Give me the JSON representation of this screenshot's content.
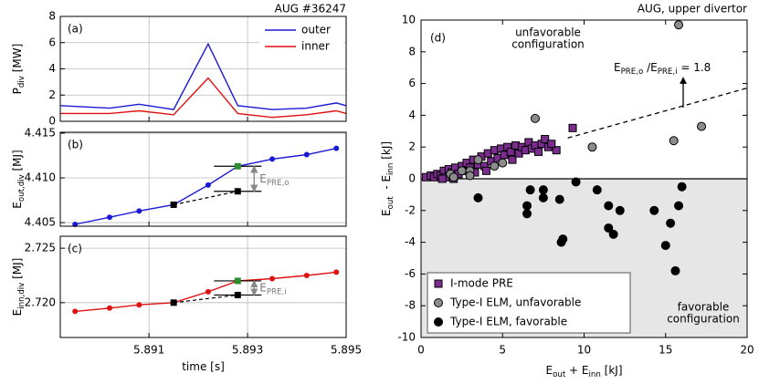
{
  "chart_data": [
    {
      "type": "line",
      "title": "AUG #36247",
      "panel": "(a)",
      "x": [
        5.8892,
        5.8902,
        5.8908,
        5.8915,
        5.8922,
        5.8928,
        5.8935,
        5.8942,
        5.8948,
        5.895
      ],
      "series": [
        {
          "name": "outer",
          "color": "#1a1ad6",
          "values": [
            1.2,
            1.0,
            1.3,
            0.9,
            5.9,
            1.2,
            0.9,
            1.0,
            1.4,
            1.2
          ]
        },
        {
          "name": "inner",
          "color": "#e01010",
          "values": [
            0.6,
            0.6,
            0.8,
            0.5,
            3.3,
            0.6,
            0.3,
            0.5,
            0.8,
            0.6
          ]
        }
      ],
      "xlim": [
        5.8892,
        5.895
      ],
      "ylim": [
        0,
        8
      ],
      "xticks": [
        5.891,
        5.893,
        5.895
      ],
      "yticks": [
        0,
        2,
        4,
        6,
        8
      ],
      "ylabel": [
        {
          "text": "P"
        },
        {
          "sub": "div"
        },
        {
          "text": " [MW]"
        }
      ],
      "grid": true,
      "legend": "upper right"
    },
    {
      "type": "line",
      "panel": "(b)",
      "x": [
        5.8895,
        5.8902,
        5.8908,
        5.8915,
        5.8922,
        5.8928,
        5.8935,
        5.8942,
        5.8948
      ],
      "series": [
        {
          "color": "#1a1ad6",
          "markers": true,
          "values": [
            4.4048,
            4.4056,
            4.4063,
            4.407,
            4.4092,
            4.4113,
            4.4121,
            4.4126,
            4.4133
          ]
        }
      ],
      "squares": [
        {
          "x": 5.8915,
          "y": 4.407,
          "color": "#000000"
        },
        {
          "x": 5.8928,
          "y": 4.4085,
          "color": "#000000"
        },
        {
          "x": 5.8928,
          "y": 4.4113,
          "color": "#2e8b2e"
        }
      ],
      "annotation": [
        {
          "text": "E"
        },
        {
          "sub": "PRE,o"
        }
      ],
      "xlim": [
        5.8892,
        5.895
      ],
      "ylim": [
        4.4046,
        4.4151
      ],
      "xticks": [
        5.891,
        5.893,
        5.895
      ],
      "yticks": [
        4.405,
        {
          "value": 4.41,
          "label": "4.410"
        },
        4.415
      ],
      "ylabel": [
        {
          "text": "E"
        },
        {
          "sub": "out,div"
        },
        {
          "text": " [MJ]"
        }
      ],
      "grid": true
    },
    {
      "type": "line",
      "panel": "(c)",
      "x": [
        5.8895,
        5.8902,
        5.8908,
        5.8915,
        5.8922,
        5.8928,
        5.8935,
        5.8942,
        5.8948
      ],
      "series": [
        {
          "color": "#e01010",
          "markers": true,
          "values": [
            2.7192,
            2.7195,
            2.7198,
            2.72,
            2.721,
            2.722,
            2.7222,
            2.7225,
            2.7228
          ]
        }
      ],
      "squares": [
        {
          "x": 5.8915,
          "y": 2.72,
          "color": "#000000"
        },
        {
          "x": 5.8928,
          "y": 2.7207,
          "color": "#000000"
        },
        {
          "x": 5.8928,
          "y": 2.722,
          "color": "#2e8b2e"
        }
      ],
      "annotation": [
        {
          "text": "E"
        },
        {
          "sub": "PRE,i"
        }
      ],
      "xlim": [
        5.8892,
        5.895
      ],
      "ylim": [
        2.7168,
        2.7261
      ],
      "xticks": [
        5.891,
        5.893,
        5.895
      ],
      "yticks": [
        {
          "value": 2.72,
          "label": "2.720"
        },
        2.725
      ],
      "ylabel": [
        {
          "text": "E"
        },
        {
          "sub": "inn,div"
        },
        {
          "text": " [MJ]"
        }
      ],
      "xlabel": [
        {
          "text": "time [s]"
        }
      ],
      "grid": true
    },
    {
      "type": "scatter",
      "title": "AUG, upper divertor",
      "panel": "(d)",
      "series": [
        {
          "name": "I-mode PRE",
          "marker": "square",
          "color": "#7b2d8e",
          "x": [
            0.3,
            0.6,
            0.8,
            1,
            1.2,
            1.4,
            1.5,
            1.7,
            1.9,
            2.1,
            2.3,
            2.5,
            2.6,
            2.8,
            3,
            3.2,
            3.3,
            3.5,
            3.7,
            3.9,
            4.1,
            4.3,
            4.5,
            4.7,
            4.9,
            5.1,
            5.3,
            5.5,
            5.6,
            5.8,
            6,
            6.2,
            6.4,
            6.6,
            6.8,
            7,
            7.2,
            7.4,
            7.6,
            7.8,
            8.3,
            9.3,
            8,
            4,
            2,
            1.3
          ],
          "values": [
            0.1,
            0.2,
            0.1,
            0.3,
            0.2,
            0.5,
            0.1,
            0.6,
            0.4,
            0.7,
            0.3,
            0.8,
            0.5,
            1,
            0.7,
            1.2,
            0.4,
            0.9,
            1.4,
            0.8,
            1.6,
            1.1,
            1.8,
            1.3,
            1.9,
            1.5,
            2,
            1.7,
            1.2,
            2.1,
            1.6,
            2,
            1.8,
            2.3,
            1.9,
            2.1,
            1.7,
            2.2,
            2.5,
            2,
            1.8,
            3.2,
            2.2,
            0.5,
            0,
            0
          ]
        },
        {
          "name": "Type-I ELM, unfavorable",
          "marker": "circle",
          "color": "#8c8c8c",
          "x": [
            1.8,
            2,
            2.5,
            3,
            3,
            3.5,
            4.5,
            5,
            7,
            10.5,
            15.5,
            15.8,
            17.2
          ],
          "values": [
            0.3,
            0.1,
            0.5,
            0.5,
            0.2,
            1.2,
            0.8,
            1,
            3.8,
            2,
            2.4,
            9.7,
            3.3
          ]
        },
        {
          "name": "Type-I ELM, favorable",
          "marker": "circle",
          "color": "#000000",
          "x": [
            3.5,
            6.5,
            6.5,
            6.7,
            7.5,
            7.5,
            8.5,
            8.6,
            8.7,
            9.5,
            10.8,
            11.5,
            11.5,
            11.8,
            12.2,
            14.3,
            15,
            15.3,
            15.6,
            15.8,
            16
          ],
          "values": [
            -1.2,
            -1.7,
            -2.2,
            -0.7,
            -0.7,
            -1.2,
            -1.3,
            -4,
            -3.8,
            -0.2,
            -0.7,
            -1.7,
            -3.1,
            -3.5,
            -2,
            -2,
            -4.2,
            -2.8,
            -5.8,
            -1.7,
            -0.5
          ]
        }
      ],
      "xlim": [
        0,
        20
      ],
      "ylim": [
        -10,
        10
      ],
      "xticks": [
        0,
        5,
        10,
        15,
        20
      ],
      "yticks": [
        -10,
        -8,
        -6,
        -4,
        -2,
        0,
        2,
        4,
        6,
        8,
        10
      ],
      "xlabel": [
        {
          "text": "E"
        },
        {
          "sub": "out"
        },
        {
          "text": " + E"
        },
        {
          "sub": "inn"
        },
        {
          "text": " [kJ]"
        }
      ],
      "ylabel": [
        {
          "text": "E"
        },
        {
          "sub": "out"
        },
        {
          "text": "  - E"
        },
        {
          "sub": "inn"
        },
        {
          "text": " [kJ]"
        }
      ],
      "ratio_label": [
        {
          "text": "E"
        },
        {
          "sub": "PRE,o"
        },
        {
          "text": " /E"
        },
        {
          "sub": "PRE,i"
        },
        {
          "text": " = "
        }
      ],
      "ratio": 1.8,
      "annotations": [
        {
          "lines": [
            "unfavorable",
            "configuration"
          ]
        },
        {
          "lines": [
            "favorable",
            "configuration"
          ]
        }
      ],
      "shade_below_zero": true,
      "legend": "lower left"
    }
  ]
}
